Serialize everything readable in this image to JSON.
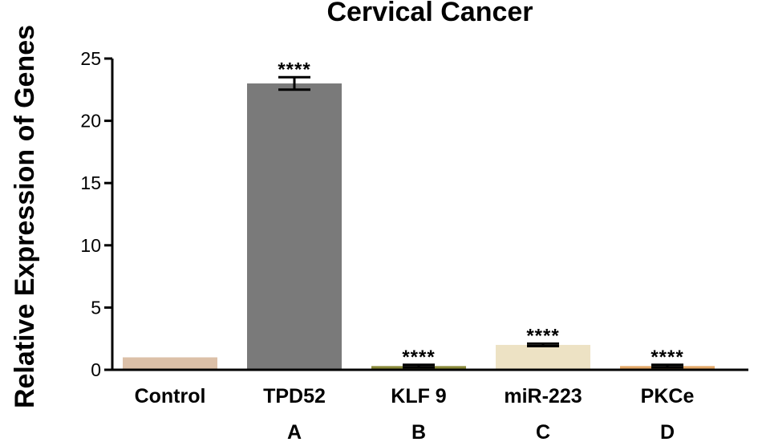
{
  "chart_data": {
    "type": "bar",
    "title": "Cervical Cancer",
    "xlabel": "",
    "ylabel": "Relative Expression of Genes",
    "ylim": [
      0,
      25
    ],
    "yticks": [
      0,
      5,
      10,
      15,
      20,
      25
    ],
    "categories": [
      "Control",
      "TPD52",
      "KLF 9",
      "miR-223",
      "PKCe"
    ],
    "panel_labels": [
      "",
      "A",
      "B",
      "C",
      "D"
    ],
    "values": [
      1.0,
      23.0,
      0.3,
      2.0,
      0.3
    ],
    "errors": [
      0,
      0.5,
      0.1,
      0.1,
      0.1
    ],
    "significance": [
      "",
      "****",
      "****",
      "****",
      "****"
    ],
    "colors": [
      "#dcc0a8",
      "#7a7a7a",
      "#8a8a3a",
      "#ede2c4",
      "#e3a868"
    ]
  }
}
